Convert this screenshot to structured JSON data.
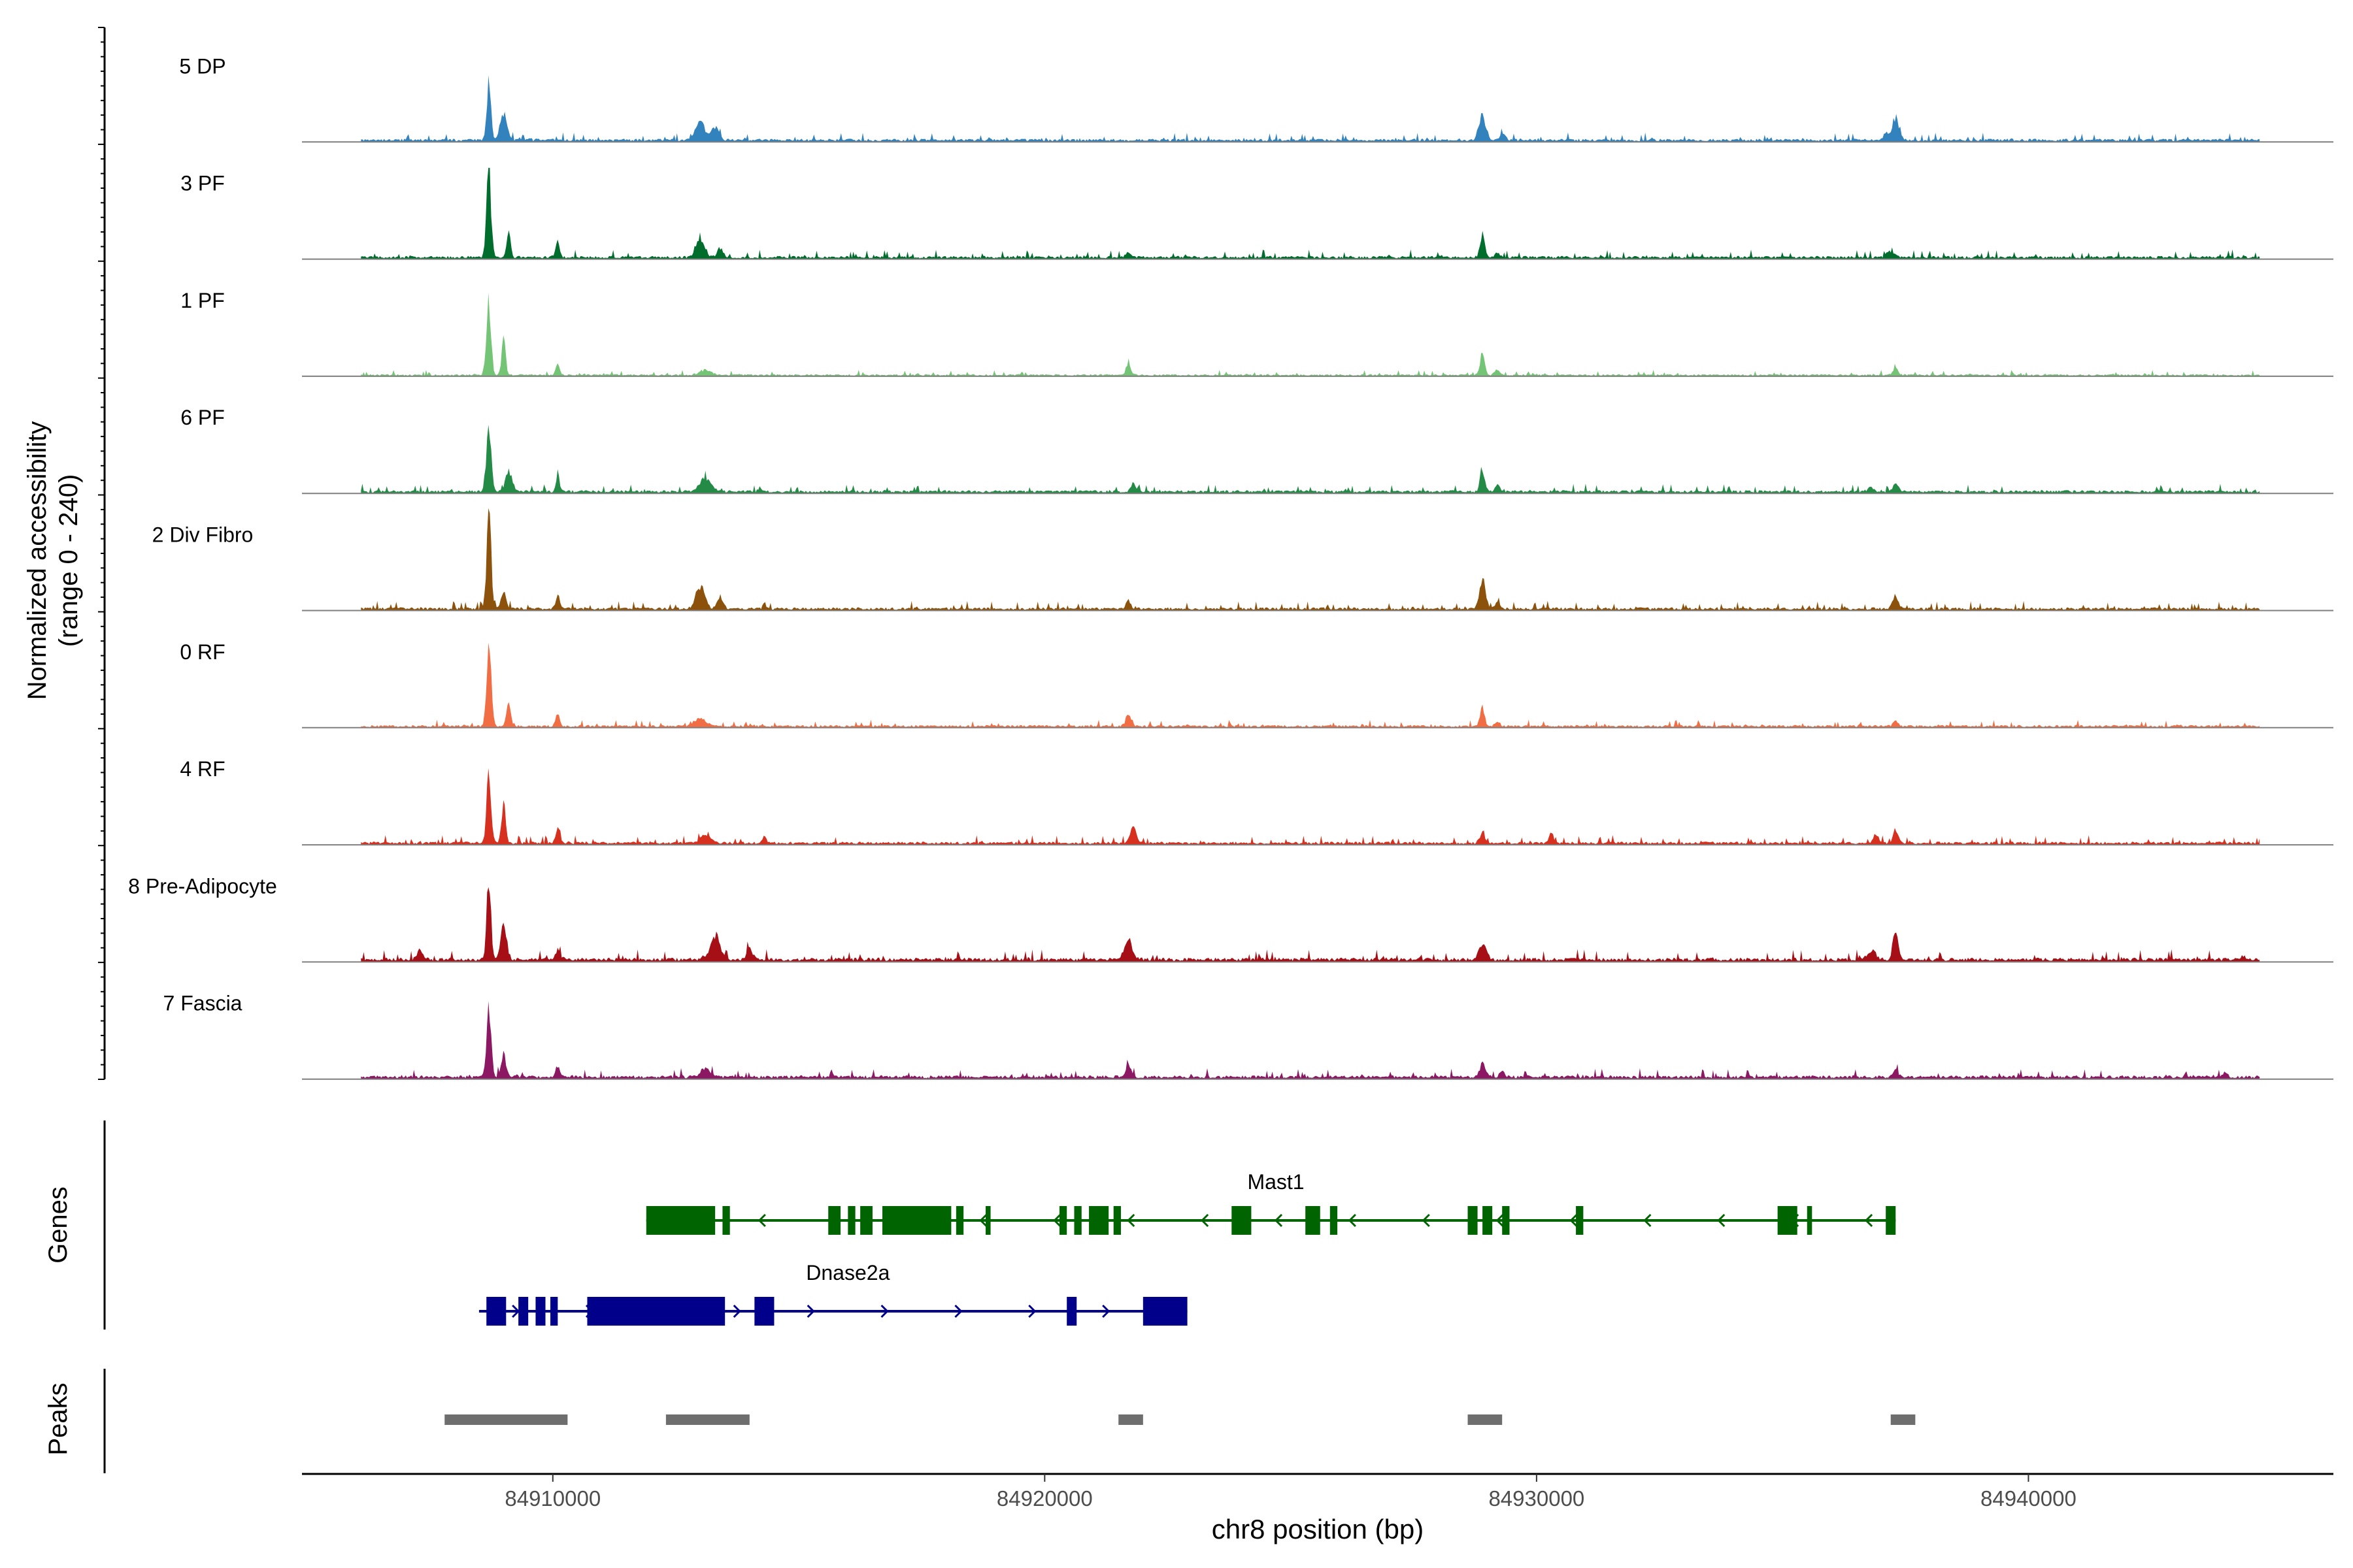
{
  "chart_data": {
    "type": "area",
    "title": "",
    "ylabel_line1": "Normalized accessibility",
    "ylabel_line2": "(range 0 - 240)",
    "genes_label": "Genes",
    "peaks_label": "Peaks",
    "xlabel": "chr8 position (bp)",
    "xlim": [
      84904900,
      84946200
    ],
    "ylim": [
      0,
      240
    ],
    "x_ticks": [
      84910000,
      84920000,
      84930000,
      84940000
    ],
    "x_tick_labels": [
      "84910000",
      "84920000",
      "84930000",
      "84940000"
    ],
    "tracks": [
      {
        "name": "5 DP",
        "color": "#3182bd",
        "baseline": 6,
        "peaks": [
          [
            84908700,
            40,
            150
          ],
          [
            84909000,
            70,
            60
          ],
          [
            84913000,
            90,
            45
          ],
          [
            84913300,
            80,
            30
          ],
          [
            84928900,
            70,
            60
          ],
          [
            84929300,
            60,
            15
          ],
          [
            84937300,
            70,
            50
          ],
          [
            84937100,
            50,
            15
          ]
        ]
      },
      {
        "name": "3 PF",
        "color": "#006d2c",
        "baseline": 6,
        "peaks": [
          [
            84908700,
            45,
            200
          ],
          [
            84909100,
            40,
            55
          ],
          [
            84910100,
            40,
            35
          ],
          [
            84913000,
            90,
            40
          ],
          [
            84913400,
            60,
            20
          ],
          [
            84921700,
            50,
            12
          ],
          [
            84928900,
            45,
            55
          ],
          [
            84929200,
            50,
            10
          ],
          [
            84937200,
            80,
            15
          ]
        ]
      },
      {
        "name": "1 PF",
        "color": "#74c476",
        "baseline": 4,
        "peaks": [
          [
            84908700,
            45,
            180
          ],
          [
            84909000,
            40,
            80
          ],
          [
            84910100,
            40,
            25
          ],
          [
            84913100,
            120,
            12
          ],
          [
            84921700,
            50,
            25
          ],
          [
            84928900,
            45,
            55
          ],
          [
            84929200,
            50,
            12
          ],
          [
            84937300,
            50,
            18
          ]
        ]
      },
      {
        "name": "6 PF",
        "color": "#238b45",
        "baseline": 6,
        "peaks": [
          [
            84908700,
            50,
            155
          ],
          [
            84909100,
            60,
            50
          ],
          [
            84910100,
            40,
            30
          ],
          [
            84913100,
            120,
            30
          ],
          [
            84914200,
            30,
            10
          ],
          [
            84921800,
            50,
            20
          ],
          [
            84928900,
            45,
            55
          ],
          [
            84929200,
            50,
            15
          ],
          [
            84937300,
            60,
            20
          ],
          [
            84936800,
            50,
            10
          ]
        ]
      },
      {
        "name": "2 Div Fibro",
        "color": "#8c510a",
        "baseline": 6,
        "peaks": [
          [
            84908700,
            45,
            230
          ],
          [
            84909000,
            50,
            40
          ],
          [
            84910100,
            40,
            30
          ],
          [
            84913000,
            90,
            50
          ],
          [
            84913400,
            60,
            30
          ],
          [
            84914300,
            30,
            15
          ],
          [
            84921700,
            50,
            20
          ],
          [
            84928900,
            60,
            70
          ],
          [
            84929200,
            50,
            15
          ],
          [
            84937300,
            60,
            30
          ]
        ]
      },
      {
        "name": "0 RF",
        "color": "#f16d43",
        "baseline": 5,
        "peaks": [
          [
            84908700,
            45,
            200
          ],
          [
            84909100,
            40,
            60
          ],
          [
            84910100,
            40,
            30
          ],
          [
            84913000,
            110,
            20
          ],
          [
            84921700,
            50,
            30
          ],
          [
            84928900,
            45,
            45
          ],
          [
            84929200,
            50,
            10
          ],
          [
            84937300,
            50,
            12
          ]
        ]
      },
      {
        "name": "4 RF",
        "color": "#d7301f",
        "baseline": 6,
        "peaks": [
          [
            84908700,
            45,
            160
          ],
          [
            84909000,
            40,
            110
          ],
          [
            84910100,
            40,
            35
          ],
          [
            84913100,
            110,
            15
          ],
          [
            84914300,
            30,
            18
          ],
          [
            84921800,
            60,
            40
          ],
          [
            84928900,
            45,
            30
          ],
          [
            84930300,
            40,
            25
          ],
          [
            84937300,
            50,
            35
          ],
          [
            84936900,
            60,
            15
          ]
        ]
      },
      {
        "name": "8 Pre-Adipocyte",
        "color": "#a50f15",
        "baseline": 8,
        "peaks": [
          [
            84908700,
            40,
            200
          ],
          [
            84909000,
            60,
            80
          ],
          [
            84907300,
            60,
            20
          ],
          [
            84910100,
            50,
            20
          ],
          [
            84913300,
            100,
            55
          ],
          [
            84914000,
            60,
            25
          ],
          [
            84921700,
            80,
            50
          ],
          [
            84928900,
            80,
            35
          ],
          [
            84937300,
            50,
            75
          ],
          [
            84936800,
            90,
            20
          ]
        ]
      },
      {
        "name": "7 Fascia",
        "color": "#8c1763",
        "baseline": 7,
        "peaks": [
          [
            84908700,
            45,
            160
          ],
          [
            84909000,
            50,
            50
          ],
          [
            84910100,
            40,
            30
          ],
          [
            84913100,
            100,
            20
          ],
          [
            84921700,
            50,
            30
          ],
          [
            84928900,
            60,
            30
          ],
          [
            84929300,
            50,
            15
          ],
          [
            84937300,
            50,
            20
          ],
          [
            84944000,
            40,
            15
          ]
        ]
      }
    ],
    "genes": [
      {
        "name": "Mast1",
        "color": "#006400",
        "strand": "-",
        "start": 84911900,
        "end": 84937300,
        "label_x": 84924700,
        "exons": [
          [
            84911900,
            84913300
          ],
          [
            84913450,
            84913600
          ],
          [
            84915600,
            84915850
          ],
          [
            84916000,
            84916150
          ],
          [
            84916250,
            84916500
          ],
          [
            84916700,
            84918100
          ],
          [
            84918200,
            84918350
          ],
          [
            84918800,
            84918900
          ],
          [
            84920300,
            84920450
          ],
          [
            84920600,
            84920750
          ],
          [
            84920900,
            84921300
          ],
          [
            84921400,
            84921550
          ],
          [
            84923800,
            84924200
          ],
          [
            84925300,
            84925600
          ],
          [
            84925800,
            84925950
          ],
          [
            84928600,
            84928800
          ],
          [
            84928900,
            84929100
          ],
          [
            84929300,
            84929450
          ],
          [
            84930800,
            84930950
          ],
          [
            84934900,
            84935300
          ],
          [
            84935500,
            84935600
          ],
          [
            84937100,
            84937300
          ]
        ]
      },
      {
        "name": "Dnase2a",
        "color": "#00008b",
        "strand": "+",
        "start": 84908500,
        "end": 84922900,
        "label_x": 84916000,
        "exons": [
          [
            84908650,
            84909050
          ],
          [
            84909300,
            84909500
          ],
          [
            84909650,
            84909850
          ],
          [
            84909950,
            84910100
          ],
          [
            84910700,
            84913500
          ],
          [
            84914100,
            84914500
          ],
          [
            84920450,
            84920650
          ],
          [
            84922000,
            84922900
          ]
        ]
      }
    ],
    "peak_regions": [
      [
        84907800,
        84910300
      ],
      [
        84912300,
        84914000
      ],
      [
        84921500,
        84922000
      ],
      [
        84928600,
        84929300
      ],
      [
        84937200,
        84937700
      ]
    ]
  }
}
